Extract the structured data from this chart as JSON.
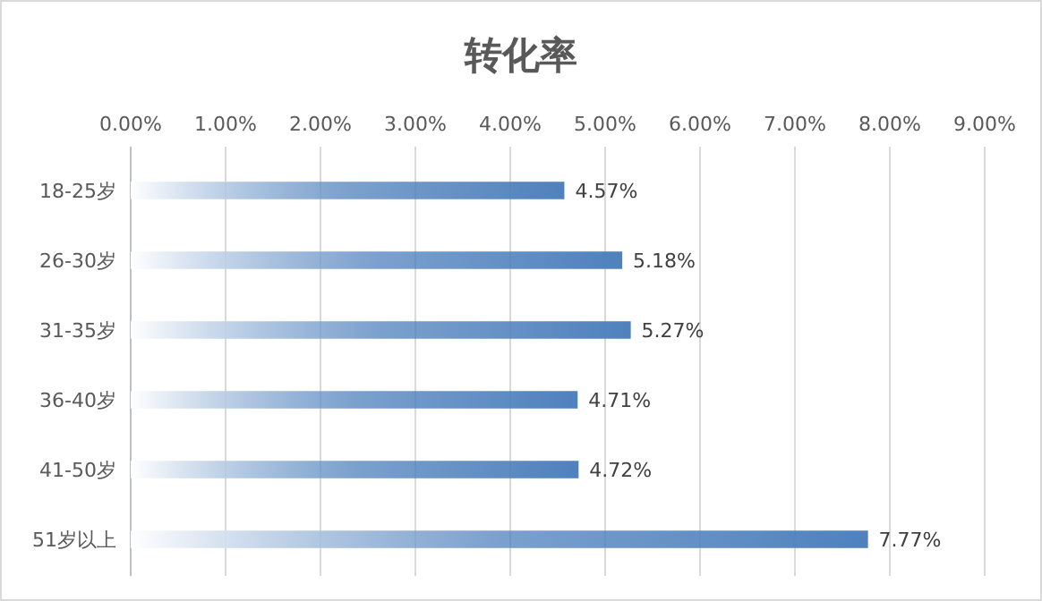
{
  "chart_data": {
    "type": "bar",
    "orientation": "horizontal",
    "title": "转化率",
    "categories": [
      "18-25岁",
      "26-30岁",
      "31-35岁",
      "36-40岁",
      "41-50岁",
      "51岁以上"
    ],
    "values": [
      4.57,
      5.18,
      5.27,
      4.71,
      4.72,
      7.77
    ],
    "value_labels": [
      "4.57%",
      "5.18%",
      "5.27%",
      "4.71%",
      "4.72%",
      "7.77%"
    ],
    "color": "#4f81bd",
    "xlim": [
      0,
      9
    ],
    "xticks": [
      {
        "value": 0,
        "label": "0.00%"
      },
      {
        "value": 1,
        "label": "1.00%"
      },
      {
        "value": 2,
        "label": "2.00%"
      },
      {
        "value": 3,
        "label": "3.00%"
      },
      {
        "value": 4,
        "label": "4.00%"
      },
      {
        "value": 5,
        "label": "5.00%"
      },
      {
        "value": 6,
        "label": "6.00%"
      },
      {
        "value": 7,
        "label": "7.00%"
      },
      {
        "value": 8,
        "label": "8.00%"
      },
      {
        "value": 9,
        "label": "9.00%"
      }
    ],
    "grid": "x"
  }
}
